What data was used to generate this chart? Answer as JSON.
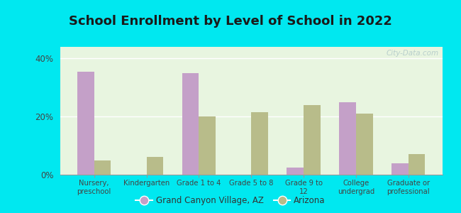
{
  "title": "School Enrollment by Level of School in 2022",
  "categories": [
    "Nursery,\npreschool",
    "Kindergarten",
    "Grade 1 to 4",
    "Grade 5 to 8",
    "Grade 9 to\n12",
    "College\nundergrad",
    "Graduate or\nprofessional"
  ],
  "gcv_values": [
    35.5,
    0.0,
    35.0,
    0.0,
    2.5,
    25.0,
    4.0
  ],
  "az_values": [
    5.0,
    6.0,
    20.0,
    21.5,
    24.0,
    21.0,
    7.0
  ],
  "gcv_color": "#c4a0c8",
  "az_color": "#b8bc8a",
  "background_outer": "#00e8f0",
  "background_inner": "#e8f5e0",
  "title_fontsize": 13,
  "ylabel_ticks": [
    0,
    20,
    40
  ],
  "ylabel_labels": [
    "0%",
    "20%",
    "40%"
  ],
  "ylim": [
    0,
    44
  ],
  "legend_label_gcv": "Grand Canyon Village, AZ",
  "legend_label_az": "Arizona",
  "watermark": "City-Data.com"
}
